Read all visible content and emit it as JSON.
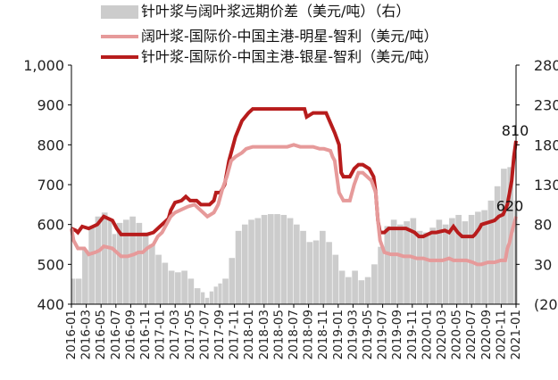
{
  "chart_data": {
    "type": "combo",
    "legend": [
      {
        "key": "spread",
        "label": "针叶浆与阔叶浆远期价差（美元/吨）（右）",
        "color": "#cccccc",
        "kind": "bar"
      },
      {
        "key": "mingxing",
        "label": "阔叶浆-国际价-中国主港-明星-智利（美元/吨）",
        "color": "#e69a9a",
        "kind": "line"
      },
      {
        "key": "yinxing",
        "label": "针叶浆-国际价-中国主港-银星-智利（美元/吨）",
        "color": "#b71c1c",
        "kind": "line"
      }
    ],
    "y_left": {
      "min": 400,
      "max": 1000,
      "ticks": [
        "400",
        "500",
        "600",
        "700",
        "800",
        "900",
        "1,000"
      ],
      "tick_values": [
        400,
        500,
        600,
        700,
        800,
        900,
        1000
      ]
    },
    "y_right": {
      "min": -20,
      "max": 280,
      "ticks": [
        "(20)",
        "30",
        "80",
        "130",
        "180",
        "230",
        "280"
      ],
      "tick_values": [
        -20,
        30,
        80,
        130,
        180,
        230,
        280
      ],
      "negative_tick_color": "#e53935"
    },
    "x_tick_labels": [
      "2016-01",
      "2016-03",
      "2016-05",
      "2016-07",
      "2016-09",
      "2016-11",
      "2017-01",
      "2017-03",
      "2017-05",
      "2017-07",
      "2017-09",
      "2017-11",
      "2018-01",
      "2018-03",
      "2018-05",
      "2018-07",
      "2018-09",
      "2018-11",
      "2019-01",
      "2019-03",
      "2019-05",
      "2019-07",
      "2019-09",
      "2019-11",
      "2020-01",
      "2020-03",
      "2020-05",
      "2020-07",
      "2020-09",
      "2020-11",
      "2021-01"
    ],
    "annotations": [
      {
        "series": "yinxing",
        "text": "810",
        "at_value": 810
      },
      {
        "series": "mingxing",
        "text": "620",
        "at_value": 620
      }
    ],
    "series": [
      {
        "key": "yinxing",
        "name": "针叶浆-国际价-中国主港-银星-智利（美元/吨）",
        "points": [
          [
            0,
            590
          ],
          [
            2,
            585
          ],
          [
            3,
            580
          ],
          [
            5,
            595
          ],
          [
            8,
            590
          ],
          [
            12,
            600
          ],
          [
            15,
            620
          ],
          [
            19,
            610
          ],
          [
            21,
            590
          ],
          [
            23,
            575
          ],
          [
            26,
            575
          ],
          [
            31,
            575
          ],
          [
            35,
            575
          ],
          [
            38,
            580
          ],
          [
            41,
            595
          ],
          [
            43,
            605
          ],
          [
            45,
            615
          ],
          [
            46,
            635
          ],
          [
            48,
            655
          ],
          [
            51,
            660
          ],
          [
            53,
            670
          ],
          [
            55,
            660
          ],
          [
            58,
            660
          ],
          [
            60,
            650
          ],
          [
            64,
            650
          ],
          [
            66,
            660
          ],
          [
            67,
            680
          ],
          [
            69,
            680
          ],
          [
            71,
            700
          ],
          [
            73,
            760
          ],
          [
            76,
            820
          ],
          [
            79,
            860
          ],
          [
            82,
            880
          ],
          [
            84,
            890
          ],
          [
            89,
            890
          ],
          [
            94,
            890
          ],
          [
            99,
            890
          ],
          [
            104,
            890
          ],
          [
            108,
            890
          ],
          [
            109,
            870
          ],
          [
            112,
            880
          ],
          [
            115,
            880
          ],
          [
            118,
            880
          ],
          [
            120,
            855
          ],
          [
            122,
            830
          ],
          [
            124,
            800
          ],
          [
            125,
            730
          ],
          [
            126,
            720
          ],
          [
            129,
            720
          ],
          [
            131,
            740
          ],
          [
            133,
            750
          ],
          [
            135,
            750
          ],
          [
            138,
            740
          ],
          [
            140,
            720
          ],
          [
            141,
            680
          ],
          [
            142,
            610
          ],
          [
            143,
            580
          ],
          [
            145,
            580
          ],
          [
            147,
            590
          ],
          [
            151,
            590
          ],
          [
            155,
            590
          ],
          [
            159,
            580
          ],
          [
            161,
            570
          ],
          [
            163,
            570
          ],
          [
            167,
            580
          ],
          [
            169,
            580
          ],
          [
            173,
            585
          ],
          [
            175,
            580
          ],
          [
            177,
            595
          ],
          [
            179,
            580
          ],
          [
            181,
            570
          ],
          [
            183,
            570
          ],
          [
            186,
            570
          ],
          [
            187,
            575
          ],
          [
            189,
            590
          ],
          [
            190,
            600
          ],
          [
            193,
            605
          ],
          [
            196,
            610
          ],
          [
            198,
            620
          ],
          [
            200,
            625
          ],
          [
            202,
            650
          ],
          [
            204,
            710
          ],
          [
            205,
            770
          ],
          [
            206,
            810
          ]
        ]
      },
      {
        "key": "mingxing",
        "name": "阔叶浆-国际价-中国主港-明星-智利（美元/吨）",
        "points": [
          [
            0,
            590
          ],
          [
            1,
            560
          ],
          [
            3,
            540
          ],
          [
            6,
            540
          ],
          [
            8,
            525
          ],
          [
            11,
            530
          ],
          [
            13,
            535
          ],
          [
            15,
            545
          ],
          [
            19,
            540
          ],
          [
            21,
            530
          ],
          [
            23,
            520
          ],
          [
            26,
            520
          ],
          [
            29,
            525
          ],
          [
            31,
            530
          ],
          [
            33,
            530
          ],
          [
            35,
            540
          ],
          [
            38,
            550
          ],
          [
            40,
            570
          ],
          [
            42,
            580
          ],
          [
            44,
            600
          ],
          [
            46,
            620
          ],
          [
            48,
            630
          ],
          [
            50,
            635
          ],
          [
            52,
            640
          ],
          [
            54,
            645
          ],
          [
            57,
            650
          ],
          [
            59,
            640
          ],
          [
            61,
            630
          ],
          [
            63,
            620
          ],
          [
            66,
            630
          ],
          [
            68,
            650
          ],
          [
            70,
            690
          ],
          [
            72,
            720
          ],
          [
            74,
            760
          ],
          [
            76,
            770
          ],
          [
            79,
            780
          ],
          [
            81,
            790
          ],
          [
            84,
            795
          ],
          [
            89,
            795
          ],
          [
            95,
            795
          ],
          [
            100,
            795
          ],
          [
            103,
            800
          ],
          [
            106,
            795
          ],
          [
            109,
            795
          ],
          [
            112,
            795
          ],
          [
            115,
            790
          ],
          [
            117,
            790
          ],
          [
            120,
            785
          ],
          [
            121,
            770
          ],
          [
            122,
            760
          ],
          [
            123,
            720
          ],
          [
            124,
            680
          ],
          [
            126,
            660
          ],
          [
            129,
            660
          ],
          [
            131,
            700
          ],
          [
            133,
            730
          ],
          [
            135,
            730
          ],
          [
            137,
            720
          ],
          [
            139,
            710
          ],
          [
            141,
            680
          ],
          [
            142,
            610
          ],
          [
            143,
            560
          ],
          [
            145,
            530
          ],
          [
            148,
            525
          ],
          [
            151,
            525
          ],
          [
            154,
            520
          ],
          [
            157,
            520
          ],
          [
            160,
            515
          ],
          [
            163,
            515
          ],
          [
            166,
            510
          ],
          [
            169,
            510
          ],
          [
            172,
            510
          ],
          [
            175,
            515
          ],
          [
            177,
            510
          ],
          [
            180,
            510
          ],
          [
            183,
            510
          ],
          [
            186,
            505
          ],
          [
            188,
            500
          ],
          [
            190,
            500
          ],
          [
            193,
            505
          ],
          [
            196,
            505
          ],
          [
            199,
            510
          ],
          [
            201,
            510
          ],
          [
            202,
            540
          ],
          [
            203,
            555
          ],
          [
            204,
            580
          ],
          [
            205,
            600
          ],
          [
            206,
            620
          ]
        ]
      }
    ],
    "spread_bars": [
      {
        "from": 0,
        "to": 2,
        "value": 12
      },
      {
        "from": 2,
        "to": 5,
        "value": 12
      },
      {
        "from": 5,
        "to": 8,
        "value": 48
      },
      {
        "from": 8,
        "to": 11,
        "value": 78
      },
      {
        "from": 11,
        "to": 14,
        "value": 90
      },
      {
        "from": 14,
        "to": 17,
        "value": 95
      },
      {
        "from": 17,
        "to": 19,
        "value": 88
      },
      {
        "from": 19,
        "to": 21,
        "value": 68
      },
      {
        "from": 21,
        "to": 24,
        "value": 82
      },
      {
        "from": 24,
        "to": 27,
        "value": 86
      },
      {
        "from": 27,
        "to": 30,
        "value": 90
      },
      {
        "from": 30,
        "to": 33,
        "value": 82
      },
      {
        "from": 33,
        "to": 36,
        "value": 70
      },
      {
        "from": 36,
        "to": 39,
        "value": 55
      },
      {
        "from": 39,
        "to": 42,
        "value": 42
      },
      {
        "from": 42,
        "to": 45,
        "value": 32
      },
      {
        "from": 45,
        "to": 48,
        "value": 22
      },
      {
        "from": 48,
        "to": 51,
        "value": 20
      },
      {
        "from": 51,
        "to": 54,
        "value": 22
      },
      {
        "from": 54,
        "to": 57,
        "value": 12
      },
      {
        "from": 57,
        "to": 60,
        "value": 0
      },
      {
        "from": 60,
        "to": 62,
        "value": -5
      },
      {
        "from": 62,
        "to": 64,
        "value": -12
      },
      {
        "from": 64,
        "to": 66,
        "value": -4
      },
      {
        "from": 66,
        "to": 68,
        "value": 2
      },
      {
        "from": 68,
        "to": 70,
        "value": 6
      },
      {
        "from": 70,
        "to": 73,
        "value": 12
      },
      {
        "from": 73,
        "to": 76,
        "value": 38
      },
      {
        "from": 76,
        "to": 79,
        "value": 72
      },
      {
        "from": 79,
        "to": 82,
        "value": 80
      },
      {
        "from": 82,
        "to": 85,
        "value": 86
      },
      {
        "from": 85,
        "to": 88,
        "value": 88
      },
      {
        "from": 88,
        "to": 91,
        "value": 92
      },
      {
        "from": 91,
        "to": 94,
        "value": 93
      },
      {
        "from": 94,
        "to": 97,
        "value": 93
      },
      {
        "from": 97,
        "to": 100,
        "value": 92
      },
      {
        "from": 100,
        "to": 103,
        "value": 88
      },
      {
        "from": 103,
        "to": 106,
        "value": 80
      },
      {
        "from": 106,
        "to": 109,
        "value": 72
      },
      {
        "from": 109,
        "to": 112,
        "value": 58
      },
      {
        "from": 112,
        "to": 115,
        "value": 60
      },
      {
        "from": 115,
        "to": 118,
        "value": 72
      },
      {
        "from": 118,
        "to": 121,
        "value": 58
      },
      {
        "from": 121,
        "to": 124,
        "value": 42
      },
      {
        "from": 124,
        "to": 127,
        "value": 22
      },
      {
        "from": 127,
        "to": 130,
        "value": 14
      },
      {
        "from": 130,
        "to": 133,
        "value": 22
      },
      {
        "from": 133,
        "to": 136,
        "value": 10
      },
      {
        "from": 136,
        "to": 139,
        "value": 14
      },
      {
        "from": 139,
        "to": 142,
        "value": 30
      },
      {
        "from": 142,
        "to": 145,
        "value": 52
      },
      {
        "from": 145,
        "to": 148,
        "value": 78
      },
      {
        "from": 148,
        "to": 151,
        "value": 86
      },
      {
        "from": 151,
        "to": 154,
        "value": 80
      },
      {
        "from": 154,
        "to": 157,
        "value": 84
      },
      {
        "from": 157,
        "to": 160,
        "value": 88
      },
      {
        "from": 160,
        "to": 163,
        "value": 72
      },
      {
        "from": 163,
        "to": 166,
        "value": 70
      },
      {
        "from": 166,
        "to": 169,
        "value": 76
      },
      {
        "from": 169,
        "to": 172,
        "value": 86
      },
      {
        "from": 172,
        "to": 175,
        "value": 80
      },
      {
        "from": 175,
        "to": 178,
        "value": 88
      },
      {
        "from": 178,
        "to": 181,
        "value": 92
      },
      {
        "from": 181,
        "to": 184,
        "value": 84
      },
      {
        "from": 184,
        "to": 187,
        "value": 92
      },
      {
        "from": 187,
        "to": 190,
        "value": 96
      },
      {
        "from": 190,
        "to": 193,
        "value": 98
      },
      {
        "from": 193,
        "to": 196,
        "value": 110
      },
      {
        "from": 196,
        "to": 199,
        "value": 128
      },
      {
        "from": 199,
        "to": 202,
        "value": 150
      },
      {
        "from": 202,
        "to": 205,
        "value": 152
      },
      {
        "from": 205,
        "to": 207,
        "value": 110
      }
    ]
  }
}
